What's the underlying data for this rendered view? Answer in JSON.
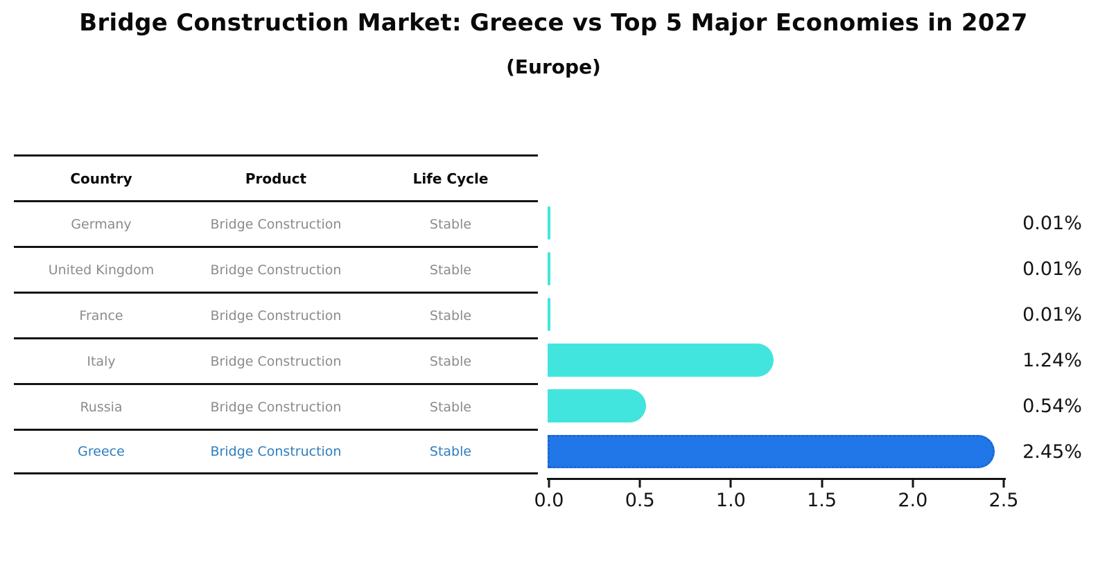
{
  "title": "Bridge Construction Market: Greece vs Top 5 Major Economies in 2027",
  "subtitle": "(Europe)",
  "table": {
    "headers": [
      "Country",
      "Product",
      "Life Cycle"
    ],
    "rows": [
      {
        "country": "Germany",
        "product": "Bridge Construction",
        "life_cycle": "Stable"
      },
      {
        "country": "United Kingdom",
        "product": "Bridge Construction",
        "life_cycle": "Stable"
      },
      {
        "country": "France",
        "product": "Bridge Construction",
        "life_cycle": "Stable"
      },
      {
        "country": "Italy",
        "product": "Bridge Construction",
        "life_cycle": "Stable"
      },
      {
        "country": "Russia",
        "product": "Bridge Construction",
        "life_cycle": "Stable"
      },
      {
        "country": "Greece",
        "product": "Bridge Construction",
        "life_cycle": "Stable"
      }
    ]
  },
  "chart_data": {
    "type": "bar",
    "orientation": "horizontal",
    "title": "Bridge Construction Market: Greece vs Top 5 Major Economies in 2027",
    "subtitle": "(Europe)",
    "categories": [
      "Germany",
      "United Kingdom",
      "France",
      "Italy",
      "Russia",
      "Greece"
    ],
    "values": [
      0.01,
      0.01,
      0.01,
      1.24,
      0.54,
      2.45
    ],
    "value_labels": [
      "0.01%",
      "0.01%",
      "0.01%",
      "1.24%",
      "0.54%",
      "2.45%"
    ],
    "xlabel": "",
    "ylabel": "",
    "xlim": [
      0,
      2.5
    ],
    "x_tick_labels": [
      "0.0",
      "0.5",
      "1.0",
      "1.5",
      "2.0",
      "2.5"
    ],
    "grid": false,
    "legend": false,
    "highlight_index": 5
  },
  "colors": {
    "bar": "#42e5dd",
    "highlight_bar": "#2176e8",
    "highlight_bar_border": "#1c66cf",
    "highlight_text": "#2e7ebf",
    "table_text": "#8b8b8b",
    "line": "#141414"
  }
}
